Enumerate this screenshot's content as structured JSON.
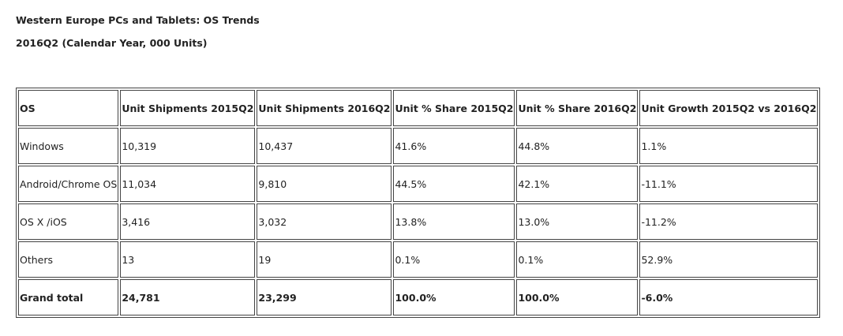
{
  "header": {
    "title": "Western Europe PCs and Tablets: OS Trends",
    "subtitle": "2016Q2 (Calendar Year, 000 Units)"
  },
  "table": {
    "columns": [
      "OS",
      "Unit Shipments 2015Q2",
      "Unit Shipments 2016Q2",
      "Unit % Share 2015Q2",
      "Unit % Share 2016Q2",
      "Unit Growth 2015Q2 vs 2016Q2"
    ],
    "rows": [
      [
        "Windows",
        "10,319",
        "10,437",
        "41.6%",
        "44.8%",
        "1.1%"
      ],
      [
        "Android/Chrome OS",
        "11,034",
        "9,810",
        "44.5%",
        "42.1%",
        "-11.1%"
      ],
      [
        "OS X /iOS",
        "3,416",
        "3,032",
        "13.8%",
        "13.0%",
        "-11.2%"
      ],
      [
        "Others",
        "13",
        "19",
        "0.1%",
        "0.1%",
        "52.9%"
      ]
    ],
    "total": [
      "Grand total",
      "24,781",
      "23,299",
      "100.0%",
      "100.0%",
      "-6.0%"
    ]
  }
}
